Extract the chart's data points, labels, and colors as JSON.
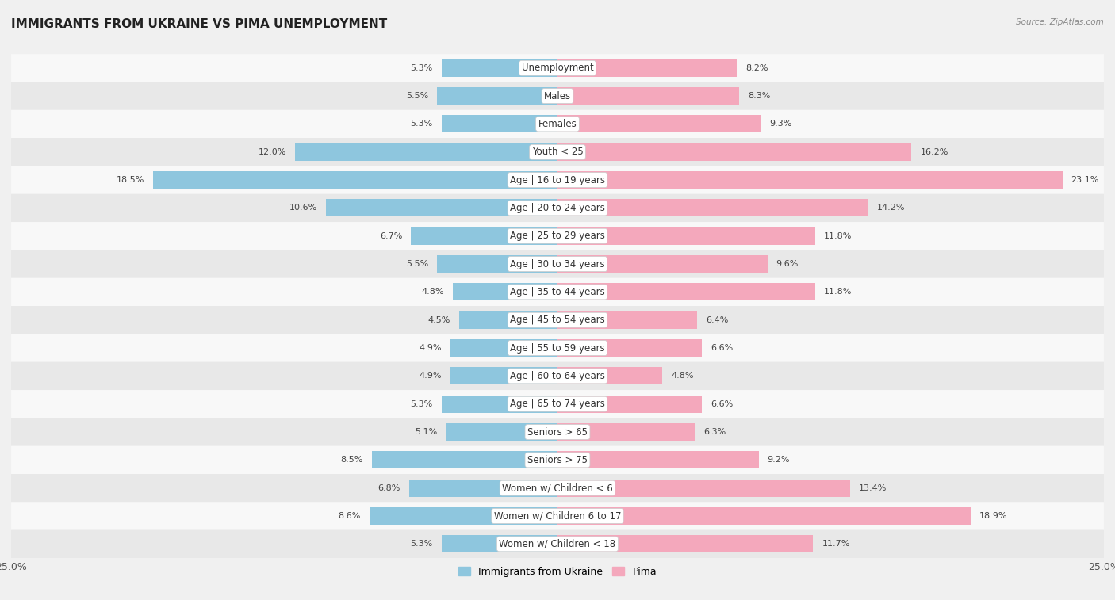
{
  "title": "IMMIGRANTS FROM UKRAINE VS PIMA UNEMPLOYMENT",
  "source": "Source: ZipAtlas.com",
  "categories": [
    "Unemployment",
    "Males",
    "Females",
    "Youth < 25",
    "Age | 16 to 19 years",
    "Age | 20 to 24 years",
    "Age | 25 to 29 years",
    "Age | 30 to 34 years",
    "Age | 35 to 44 years",
    "Age | 45 to 54 years",
    "Age | 55 to 59 years",
    "Age | 60 to 64 years",
    "Age | 65 to 74 years",
    "Seniors > 65",
    "Seniors > 75",
    "Women w/ Children < 6",
    "Women w/ Children 6 to 17",
    "Women w/ Children < 18"
  ],
  "left_values": [
    5.3,
    5.5,
    5.3,
    12.0,
    18.5,
    10.6,
    6.7,
    5.5,
    4.8,
    4.5,
    4.9,
    4.9,
    5.3,
    5.1,
    8.5,
    6.8,
    8.6,
    5.3
  ],
  "right_values": [
    8.2,
    8.3,
    9.3,
    16.2,
    23.1,
    14.2,
    11.8,
    9.6,
    11.8,
    6.4,
    6.6,
    4.8,
    6.6,
    6.3,
    9.2,
    13.4,
    18.9,
    11.7
  ],
  "left_color": "#8ec6de",
  "right_color": "#f4a8bc",
  "axis_limit": 25.0,
  "background_color": "#f0f0f0",
  "row_color_even": "#f8f8f8",
  "row_color_odd": "#e8e8e8",
  "legend_left": "Immigrants from Ukraine",
  "legend_right": "Pima",
  "title_fontsize": 11,
  "label_fontsize": 8.5,
  "value_fontsize": 8.0
}
